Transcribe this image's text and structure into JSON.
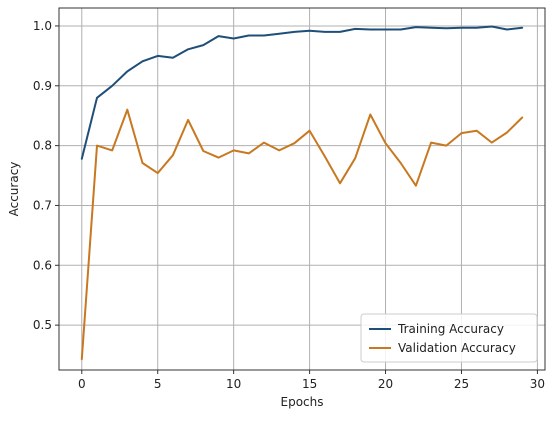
{
  "chart_data": {
    "type": "line",
    "title": "",
    "xlabel": "Epochs",
    "ylabel": "Accuracy",
    "xlim": [
      -1.5,
      30.5
    ],
    "ylim": [
      0.425,
      1.03
    ],
    "xticks": [
      0,
      5,
      10,
      15,
      20,
      25,
      30
    ],
    "yticks": [
      0.5,
      0.6,
      0.7,
      0.8,
      0.9,
      1.0
    ],
    "xtick_labels": [
      "0",
      "5",
      "10",
      "15",
      "20",
      "25",
      "30"
    ],
    "ytick_labels": [
      "0.5",
      "0.6",
      "0.7",
      "0.8",
      "0.9",
      "1.0"
    ],
    "grid": true,
    "legend_position": "bottom-right",
    "x": [
      0,
      1,
      2,
      3,
      4,
      5,
      6,
      7,
      8,
      9,
      10,
      11,
      12,
      13,
      14,
      15,
      16,
      17,
      18,
      19,
      20,
      21,
      22,
      23,
      24,
      25,
      26,
      27,
      28,
      29
    ],
    "series": [
      {
        "name": "Training Accuracy",
        "color": "#1f4e79",
        "values": [
          0.778,
          0.88,
          0.9,
          0.924,
          0.941,
          0.95,
          0.947,
          0.961,
          0.968,
          0.983,
          0.979,
          0.984,
          0.984,
          0.987,
          0.99,
          0.992,
          0.99,
          0.99,
          0.995,
          0.994,
          0.994,
          0.994,
          0.998,
          0.997,
          0.996,
          0.997,
          0.997,
          0.999,
          0.994,
          0.997
        ]
      },
      {
        "name": "Validation Accuracy",
        "color": "#c87820",
        "values": [
          0.443,
          0.8,
          0.792,
          0.86,
          0.771,
          0.754,
          0.784,
          0.843,
          0.791,
          0.78,
          0.792,
          0.787,
          0.805,
          0.792,
          0.804,
          0.825,
          0.782,
          0.737,
          0.779,
          0.852,
          0.804,
          0.771,
          0.733,
          0.805,
          0.8,
          0.821,
          0.825,
          0.805,
          0.822,
          0.847
        ]
      }
    ]
  }
}
